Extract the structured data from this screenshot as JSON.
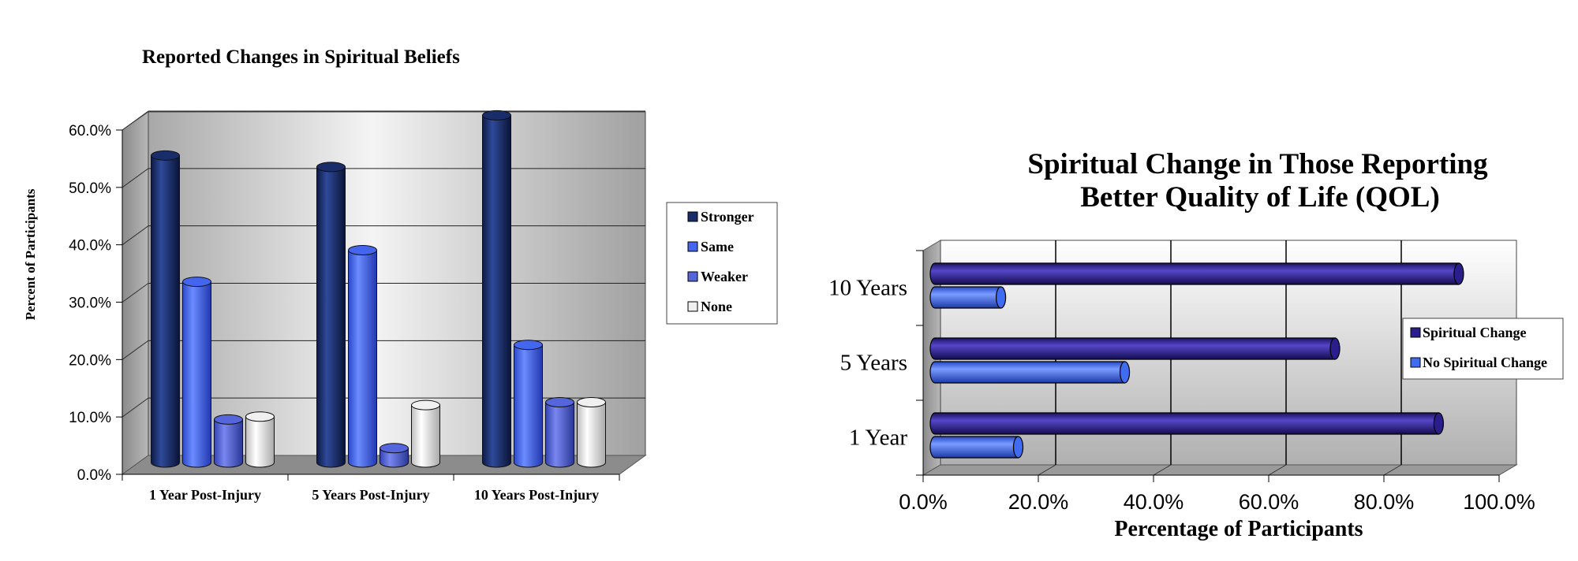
{
  "chart_data": [
    {
      "type": "bar",
      "title": "Reported Changes in Spiritual Beliefs",
      "ylabel": "Percent of Participants",
      "xlabel": "",
      "categories": [
        "1 Year Post-Injury",
        "5 Years Post-Injury",
        "10 Years Post-Injury"
      ],
      "series": [
        {
          "name": "Stronger",
          "values": [
            53.5,
            51.5,
            60.5
          ],
          "color": "#1a2d6b"
        },
        {
          "name": "Same",
          "values": [
            31.5,
            37.0,
            20.5
          ],
          "color": "#4466ee"
        },
        {
          "name": "Weaker",
          "values": [
            7.5,
            2.5,
            10.5
          ],
          "color": "#5566dd"
        },
        {
          "name": "None",
          "values": [
            8.0,
            10.0,
            10.5
          ],
          "color": "#f0f0f0"
        }
      ],
      "ylim": [
        0,
        60
      ],
      "yticks": [
        "0.0%",
        "10.0%",
        "20.0%",
        "30.0%",
        "40.0%",
        "50.0%",
        "60.0%"
      ],
      "grid": true,
      "legend": "right"
    },
    {
      "type": "bar",
      "orientation": "horizontal",
      "title": "Spiritual Change in Those Reporting Better Quality of Life (QOL)",
      "title_lines": [
        "Spiritual Change in Those Reporting",
        "Better Quality of Life (QOL)"
      ],
      "xlabel": "Percentage of Participants",
      "ylabel": "",
      "categories": [
        "1 Year",
        "5 Years",
        "10 Years"
      ],
      "series": [
        {
          "name": "Spiritual Change",
          "values": [
            88.0,
            70.0,
            91.5
          ],
          "color": "#2a1e8c"
        },
        {
          "name": "No Spiritual Change",
          "values": [
            15.0,
            33.5,
            12.0
          ],
          "color": "#3f6cf0"
        }
      ],
      "xlim": [
        0,
        100
      ],
      "xticks": [
        "0.0%",
        "20.0%",
        "40.0%",
        "60.0%",
        "80.0%",
        "100.0%"
      ],
      "grid": true,
      "legend": "right"
    }
  ]
}
